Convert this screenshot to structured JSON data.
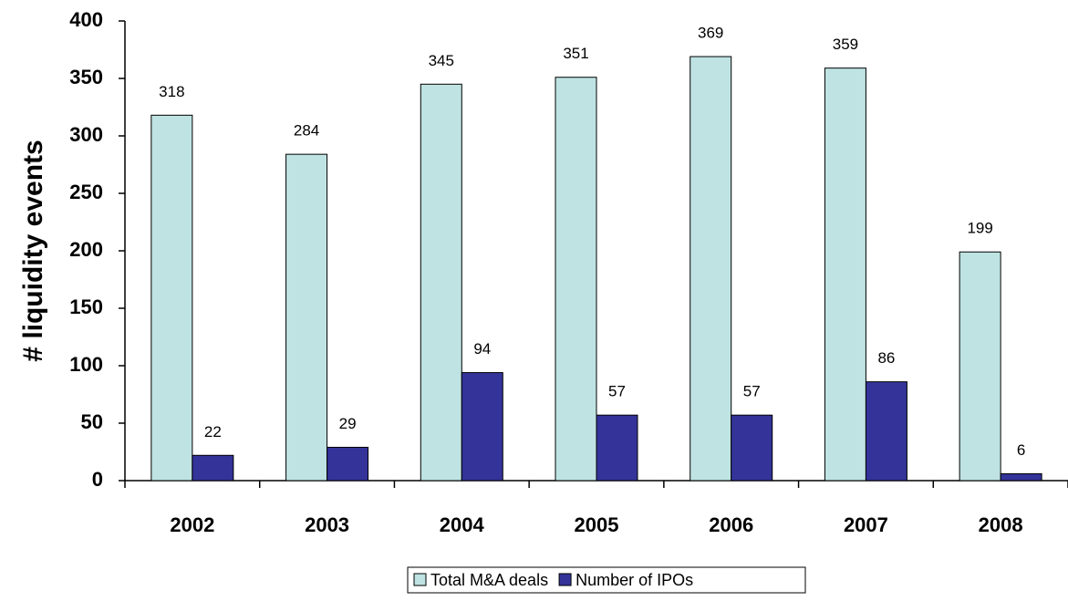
{
  "chart_data": {
    "type": "bar",
    "y_label": "# liquidity events",
    "categories": [
      "2002",
      "2003",
      "2004",
      "2005",
      "2006",
      "2007",
      "2008"
    ],
    "series": [
      {
        "name": "Total M&A deals",
        "color": "#bfe3e3",
        "values": [
          318,
          284,
          345,
          351,
          369,
          359,
          199
        ]
      },
      {
        "name": "Number of IPOs",
        "color": "#333399",
        "values": [
          22,
          29,
          94,
          57,
          57,
          86,
          6
        ]
      }
    ],
    "ylim": [
      0,
      400
    ],
    "yticks": [
      0,
      50,
      100,
      150,
      200,
      250,
      300,
      350,
      400
    ],
    "grid": false,
    "legend": "bottom"
  }
}
